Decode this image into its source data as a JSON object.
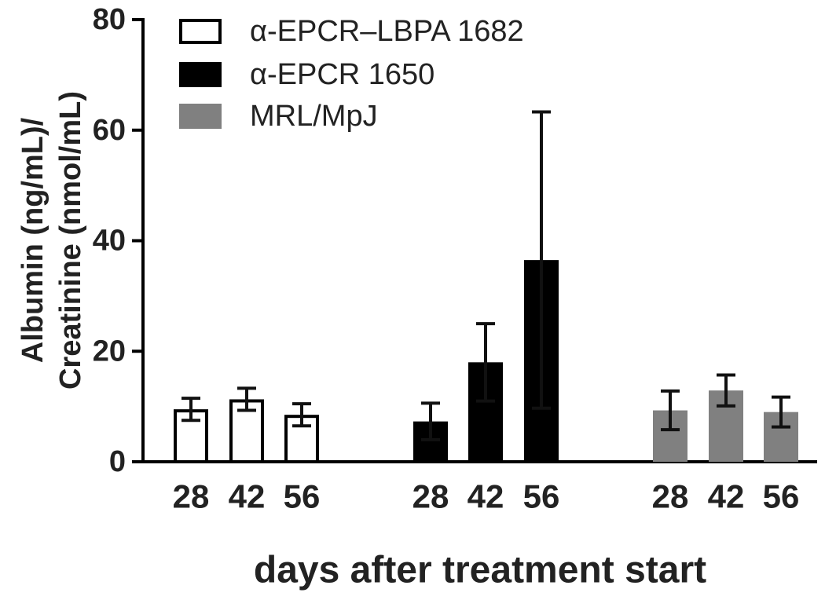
{
  "chart_data": {
    "type": "bar",
    "xlabel": "days after treatment start",
    "ylabel_line1": "Albumin (ng/mL)/",
    "ylabel_line2": "Creatinine (nmol/mL)",
    "ylim": [
      0,
      80
    ],
    "yticks": [
      "0",
      "20",
      "40",
      "60",
      "80"
    ],
    "categories": [
      "28",
      "42",
      "56"
    ],
    "legend_position": "top-left",
    "groups": [
      {
        "name": "α-EPCR–LBPA 1682",
        "fill": "#ffffff",
        "stroke": "#000000",
        "values": [
          9.5,
          11.3,
          8.5
        ],
        "errors": [
          2.0,
          2.0,
          2.0
        ]
      },
      {
        "name": "α-EPCR 1650",
        "fill": "#000000",
        "stroke": "#000000",
        "values": [
          7.3,
          18.0,
          36.5
        ],
        "errors": [
          3.3,
          7.0,
          26.8
        ]
      },
      {
        "name": "MRL/MpJ",
        "fill": "#808080",
        "stroke": "#808080",
        "values": [
          9.3,
          12.9,
          9.0
        ],
        "errors": [
          3.5,
          2.8,
          2.7
        ]
      }
    ]
  }
}
